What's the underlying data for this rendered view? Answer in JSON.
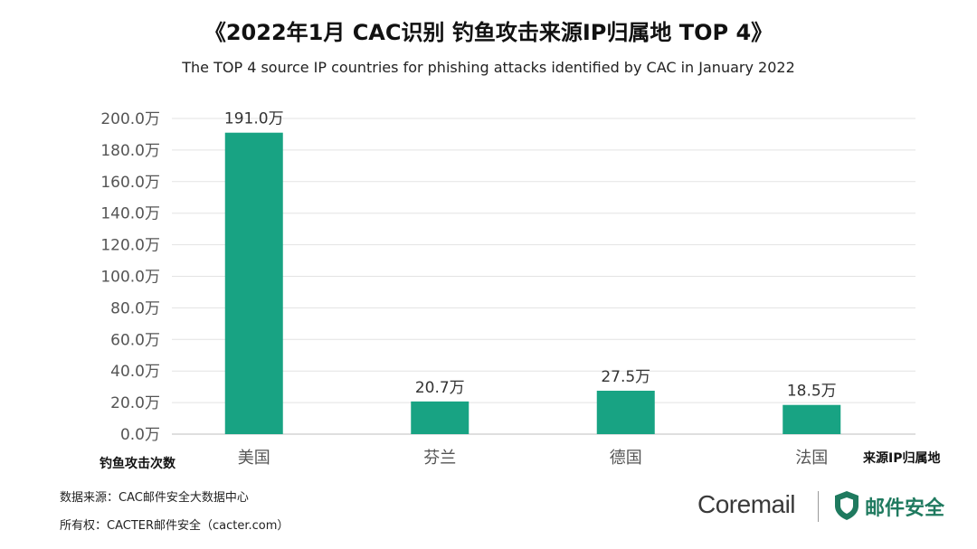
{
  "header": {
    "title": "《2022年1月 CAC识别 钓鱼攻击来源IP归属地 TOP 4》",
    "subtitle": "The TOP 4 source IP countries for phishing attacks identified by CAC in January 2022"
  },
  "chart_data": {
    "type": "bar",
    "categories": [
      "美国",
      "芬兰",
      "德国",
      "法国"
    ],
    "values": [
      191.0,
      20.7,
      27.5,
      18.5
    ],
    "data_labels": [
      "191.0万",
      "20.7万",
      "27.5万",
      "18.5万"
    ],
    "ylim": [
      0,
      200
    ],
    "y_ticks": [
      "0.0万",
      "20.0万",
      "40.0万",
      "60.0万",
      "80.0万",
      "100.0万",
      "120.0万",
      "140.0万",
      "160.0万",
      "180.0万",
      "200.0万"
    ],
    "ylabel": "钓鱼攻击次数",
    "xlabel": "来源IP归属地",
    "grid": true,
    "bar_color": "#18a383"
  },
  "footer": {
    "source": "数据来源：CAC邮件安全大数据中心",
    "copyright": "所有权：CACTER邮件安全（cacter.com）"
  },
  "branding": {
    "coremail": "Coremail",
    "product": "邮件安全",
    "shield_icon": "shield-icon",
    "brand_color": "#1f7a5f"
  }
}
